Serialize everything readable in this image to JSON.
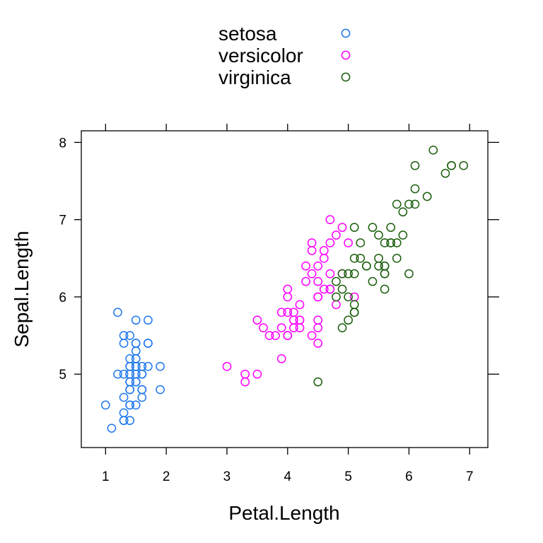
{
  "chart_data": {
    "type": "scatter",
    "xlabel": "Petal.Length",
    "ylabel": "Sepal.Length",
    "xlim": [
      0.6,
      7.3
    ],
    "ylim": [
      4.05,
      8.15
    ],
    "x_ticks": [
      1,
      2,
      3,
      4,
      5,
      6,
      7
    ],
    "y_ticks": [
      5,
      6,
      7,
      8
    ],
    "legend_position": "top-center",
    "series": [
      {
        "name": "setosa",
        "color": "#1f78ec",
        "x": [
          1.4,
          1.4,
          1.3,
          1.5,
          1.4,
          1.7,
          1.4,
          1.5,
          1.4,
          1.5,
          1.5,
          1.6,
          1.4,
          1.1,
          1.2,
          1.5,
          1.3,
          1.4,
          1.7,
          1.5,
          1.7,
          1.5,
          1.0,
          1.7,
          1.9,
          1.6,
          1.6,
          1.5,
          1.4,
          1.6,
          1.6,
          1.5,
          1.5,
          1.4,
          1.5,
          1.2,
          1.3,
          1.4,
          1.3,
          1.5,
          1.3,
          1.3,
          1.3,
          1.6,
          1.9,
          1.4,
          1.6,
          1.4,
          1.5,
          1.4
        ],
        "y": [
          5.1,
          4.9,
          4.7,
          4.6,
          5.0,
          5.4,
          4.6,
          5.0,
          4.4,
          4.9,
          5.4,
          4.8,
          4.8,
          4.3,
          5.8,
          5.7,
          5.4,
          5.1,
          5.7,
          5.1,
          5.4,
          5.1,
          4.6,
          5.1,
          4.8,
          5.0,
          5.0,
          5.2,
          5.2,
          4.7,
          4.8,
          5.4,
          5.2,
          5.5,
          4.9,
          5.0,
          5.5,
          4.9,
          4.4,
          5.1,
          5.0,
          4.5,
          4.4,
          5.0,
          5.1,
          4.8,
          5.1,
          4.6,
          5.3,
          5.0
        ]
      },
      {
        "name": "versicolor",
        "color": "#ff00ff",
        "x": [
          4.7,
          4.5,
          4.9,
          4.0,
          4.6,
          4.5,
          4.7,
          3.3,
          4.6,
          3.9,
          3.5,
          4.2,
          4.0,
          4.7,
          3.6,
          4.4,
          4.5,
          4.1,
          4.5,
          3.9,
          4.8,
          4.0,
          4.9,
          4.7,
          4.3,
          4.4,
          4.8,
          5.0,
          4.5,
          3.5,
          3.8,
          3.7,
          3.9,
          5.1,
          4.5,
          4.5,
          4.7,
          4.4,
          4.1,
          4.0,
          4.4,
          4.6,
          4.0,
          3.3,
          4.2,
          4.2,
          4.2,
          4.3,
          3.0,
          4.1
        ],
        "y": [
          7.0,
          6.4,
          6.9,
          5.5,
          6.5,
          5.7,
          6.3,
          4.9,
          6.6,
          5.2,
          5.0,
          5.9,
          6.0,
          6.1,
          5.6,
          6.7,
          5.6,
          5.8,
          6.2,
          5.6,
          5.9,
          6.1,
          6.3,
          6.1,
          6.4,
          6.6,
          6.8,
          6.7,
          6.0,
          5.7,
          5.5,
          5.5,
          5.8,
          6.0,
          5.4,
          6.0,
          6.7,
          6.3,
          5.6,
          5.5,
          5.5,
          6.1,
          5.8,
          5.0,
          5.6,
          5.7,
          5.7,
          6.2,
          5.1,
          5.7
        ]
      },
      {
        "name": "virginica",
        "color": "#1a5e0c",
        "x": [
          6.0,
          5.1,
          5.9,
          5.6,
          5.8,
          6.6,
          4.5,
          6.3,
          5.8,
          6.1,
          5.1,
          5.3,
          5.5,
          5.0,
          5.1,
          5.3,
          5.5,
          6.7,
          6.9,
          5.0,
          5.7,
          4.9,
          6.7,
          4.9,
          5.7,
          6.0,
          4.8,
          4.9,
          5.6,
          5.8,
          6.1,
          6.4,
          5.6,
          5.1,
          5.6,
          6.1,
          5.6,
          5.5,
          4.8,
          5.4,
          5.6,
          5.1,
          5.1,
          5.9,
          5.7,
          5.2,
          5.0,
          5.2,
          5.4,
          5.1
        ],
        "y": [
          6.3,
          5.8,
          7.1,
          6.3,
          6.5,
          7.6,
          4.9,
          7.3,
          6.7,
          7.2,
          6.5,
          6.4,
          6.8,
          5.7,
          5.8,
          6.4,
          6.5,
          7.7,
          7.7,
          6.0,
          6.9,
          5.6,
          7.7,
          6.3,
          6.7,
          7.2,
          6.2,
          6.1,
          6.4,
          7.2,
          7.4,
          7.9,
          6.4,
          6.3,
          6.1,
          7.7,
          6.3,
          6.4,
          6.0,
          6.9,
          6.7,
          6.9,
          5.8,
          6.8,
          6.7,
          6.7,
          6.3,
          6.5,
          6.2,
          5.9
        ]
      }
    ]
  }
}
